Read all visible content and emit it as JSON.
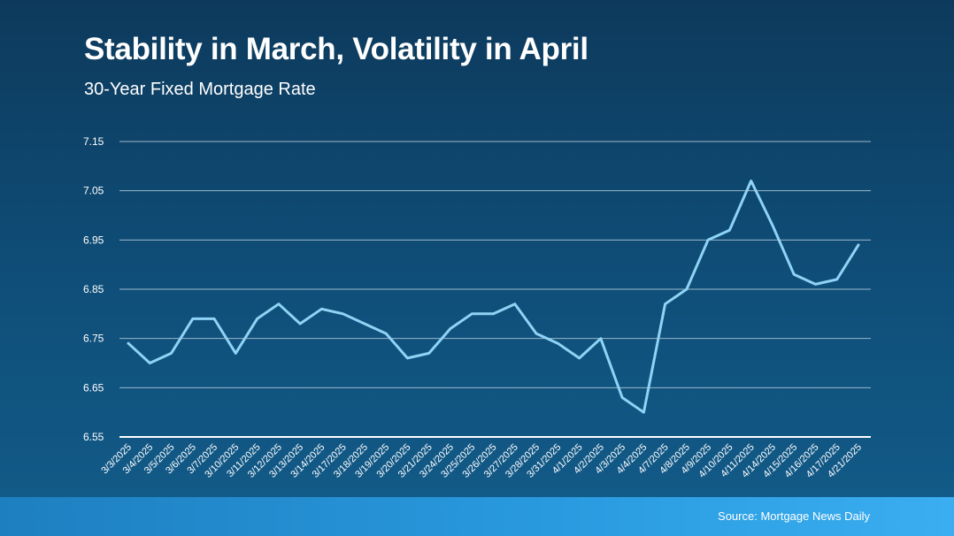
{
  "title": "Stability in March, Volatility in April",
  "subtitle": "30-Year Fixed Mortgage Rate",
  "source": "Source: Mortgage News Daily",
  "colors": {
    "line": "#8fd3f5",
    "grid": "#9cb8cc",
    "axis": "#ffffff",
    "footer": "#2a9be0"
  },
  "chart_data": {
    "type": "line",
    "title": "Stability in March, Volatility in April",
    "subtitle": "30-Year Fixed Mortgage Rate",
    "xlabel": "",
    "ylabel": "",
    "ylim": [
      6.55,
      7.15
    ],
    "yticks": [
      "7.15",
      "7.05",
      "6.95",
      "6.85",
      "6.75",
      "6.65",
      "6.55"
    ],
    "grid": true,
    "categories": [
      "3/3/2025",
      "3/4/2025",
      "3/5/2025",
      "3/6/2025",
      "3/7/2025",
      "3/10/2025",
      "3/11/2025",
      "3/12/2025",
      "3/13/2025",
      "3/14/2025",
      "3/17/2025",
      "3/18/2025",
      "3/19/2025",
      "3/20/2025",
      "3/21/2025",
      "3/24/2025",
      "3/25/2025",
      "3/26/2025",
      "3/27/2025",
      "3/28/2025",
      "3/31/2025",
      "4/1/2025",
      "4/2/2025",
      "4/3/2025",
      "4/4/2025",
      "4/7/2025",
      "4/8/2025",
      "4/9/2025",
      "4/10/2025",
      "4/11/2025",
      "4/14/2025",
      "4/15/2025",
      "4/16/2025",
      "4/17/2025",
      "4/21/2025"
    ],
    "series": [
      {
        "name": "",
        "values": [
          6.74,
          6.7,
          6.72,
          6.79,
          6.79,
          6.72,
          6.79,
          6.82,
          6.78,
          6.81,
          6.8,
          6.78,
          6.76,
          6.71,
          6.72,
          6.77,
          6.8,
          6.8,
          6.82,
          6.76,
          6.74,
          6.71,
          6.75,
          6.63,
          6.6,
          6.82,
          6.85,
          6.95,
          6.97,
          7.07,
          6.98,
          6.88,
          6.86,
          6.87,
          6.94
        ]
      }
    ]
  }
}
